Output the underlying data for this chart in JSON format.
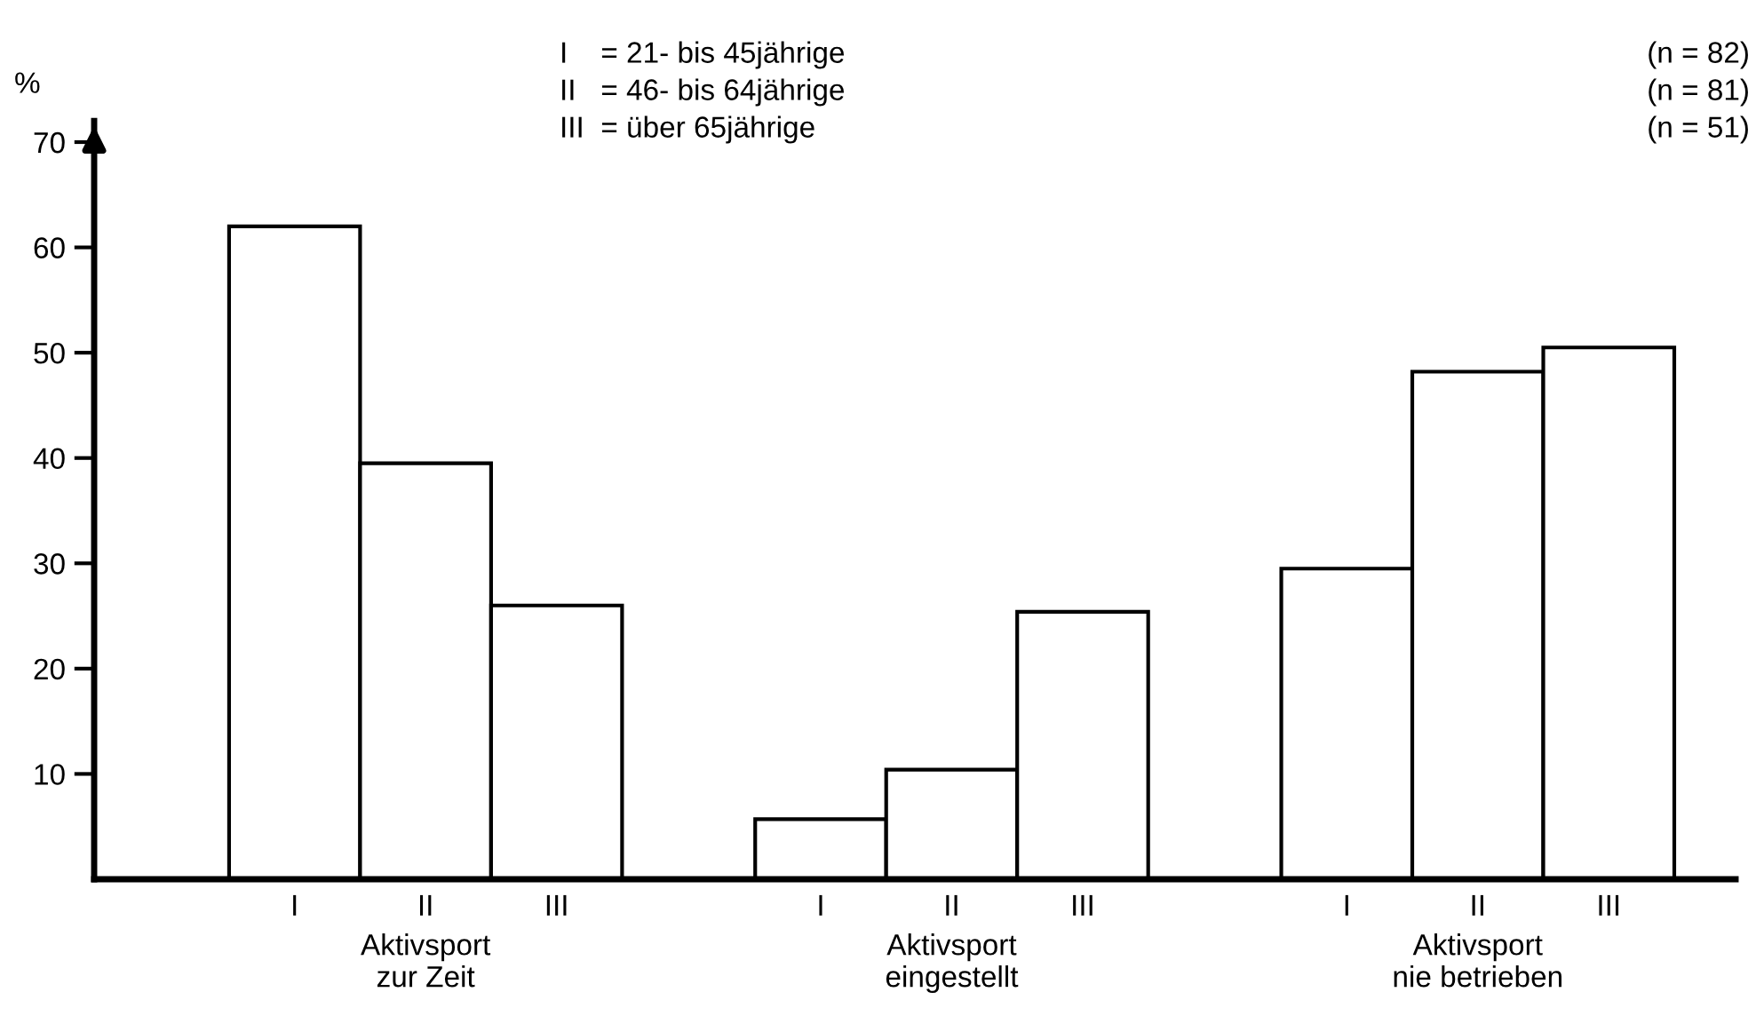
{
  "chart_data": {
    "type": "bar",
    "ylabel": "%",
    "categories": [
      "Aktivsport\nzur Zeit",
      "Aktivsport\neingestellt",
      "Aktivsport\nnie betrieben"
    ],
    "series": [
      {
        "name": "I",
        "color": "#ffffff",
        "values": [
          62,
          5.7,
          29.5
        ]
      },
      {
        "name": "II",
        "color": "#ffffff",
        "values": [
          39.5,
          10.4,
          48.2
        ]
      },
      {
        "name": "III",
        "color": "#ffffff",
        "values": [
          26,
          25.4,
          50.5
        ]
      }
    ],
    "ylim": [
      0,
      72
    ],
    "yticks": [
      10,
      20,
      30,
      40,
      50,
      60,
      70
    ],
    "grid": false,
    "legend": false,
    "annotations": [
      "I    = 21- bis 45jährige",
      "II   = 46- bis 64jährige",
      "III  = über 65jährige",
      "(n = 82)",
      "(n = 81)",
      "(n = 51)"
    ]
  }
}
